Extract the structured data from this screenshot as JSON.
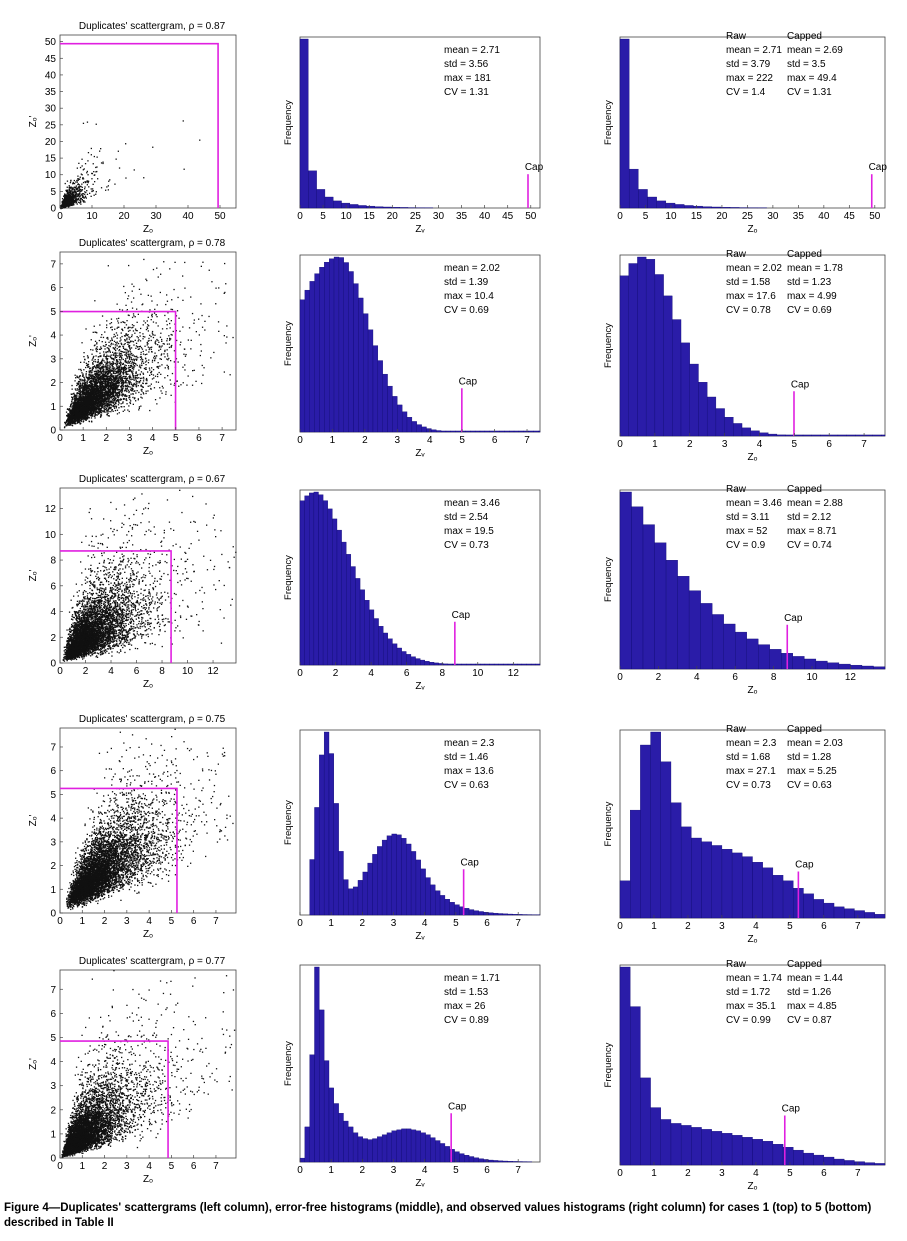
{
  "figure": {
    "caption": "Figure 4—Duplicates' scattergrams (left column), error-free histograms (middle), and observed values histograms (right column) for cases 1 (top) to 5 (bottom) described in Table II"
  },
  "colors": {
    "bar": "#2a1ca8",
    "bar_edge": "#0c0870",
    "cap": "#e020e0",
    "point": "#111111"
  },
  "chart_data": [
    {
      "type": "scatter",
      "case": 1,
      "title": "Duplicates' scattergram, ρ = 0.87",
      "xlabel": "Zₒ",
      "ylabel": "Zₒ'",
      "xlim": [
        0,
        55
      ],
      "ylim": [
        0,
        52
      ],
      "xticks": [
        "0",
        "10",
        "20",
        "30",
        "40",
        "50"
      ],
      "yticks": [
        "0",
        "5",
        "10",
        "15",
        "20",
        "25",
        "30",
        "35",
        "40",
        "45",
        "50"
      ],
      "cap": 49.4,
      "n_points": 1400,
      "rho": 0.87,
      "mean": 2.69,
      "cv": 1.31,
      "density": "dense cloud near origin, sparse scatter out to ~40"
    },
    {
      "type": "bar",
      "case": 1,
      "variable": "error-free",
      "xlabel": "Zᵥ",
      "ylabel": "Frequency",
      "xlim": [
        0,
        52
      ],
      "bin_width": 1.8,
      "xticks": [
        "0",
        "5",
        "10",
        "15",
        "20",
        "25",
        "30",
        "35",
        "40",
        "45",
        "50"
      ],
      "values": [
        100,
        22,
        11,
        6.5,
        4.2,
        2.9,
        2.1,
        1.5,
        1.1,
        0.8,
        0.6,
        0.45,
        0.35,
        0.25,
        0.2,
        0.15
      ],
      "cap": 49.4,
      "cap_label": "Cap",
      "stats": [
        "mean = 2.71",
        "std = 3.56",
        "max = 181",
        "CV = 1.31"
      ]
    },
    {
      "type": "bar",
      "case": 1,
      "variable": "observed",
      "xlabel": "Zₒ",
      "ylabel": "Frequency",
      "xlim": [
        0,
        52
      ],
      "bin_width": 1.8,
      "xticks": [
        "0",
        "5",
        "10",
        "15",
        "20",
        "25",
        "30",
        "35",
        "40",
        "45",
        "50"
      ],
      "values": [
        100,
        23,
        11,
        6.5,
        4.2,
        2.9,
        2.1,
        1.5,
        1.1,
        0.8,
        0.6,
        0.45,
        0.35,
        0.25,
        0.2,
        0.15
      ],
      "cap": 49.4,
      "cap_label": "Cap",
      "stats_headers": [
        "Raw",
        "Capped"
      ],
      "stats_raw": [
        "mean = 2.71",
        "std = 3.79",
        "max = 222",
        "CV = 1.4"
      ],
      "stats_capped": [
        "mean = 2.69",
        "std = 3.5",
        "max = 49.4",
        "CV = 1.31"
      ]
    },
    {
      "type": "scatter",
      "case": 2,
      "title": "Duplicates' scattergram, ρ = 0.78",
      "xlabel": "Zₒ",
      "ylabel": "Zₒ'",
      "xlim": [
        0,
        7.6
      ],
      "ylim": [
        0,
        7.5
      ],
      "xticks": [
        "0",
        "1",
        "2",
        "3",
        "4",
        "5",
        "6",
        "7"
      ],
      "yticks": [
        "0",
        "1",
        "2",
        "3",
        "4",
        "5",
        "6",
        "7"
      ],
      "cap": 4.99,
      "n_points": 5200,
      "rho": 0.78,
      "mean": 1.78,
      "cv": 0.69,
      "density": "wide wedge-shaped cloud"
    },
    {
      "type": "bar",
      "case": 2,
      "variable": "error-free",
      "xlabel": "Zᵥ",
      "ylabel": "Frequency",
      "xlim": [
        0,
        7.4
      ],
      "bin_width": 0.15,
      "xticks": [
        "0",
        "1",
        "2",
        "3",
        "4",
        "5",
        "6",
        "7"
      ],
      "profile": {
        "kind": "gamma",
        "peak": 1.2,
        "sigma_left": 1.5,
        "tail_scale": 1.35,
        "tail_power": 1.9,
        "floor": 0.6
      },
      "cap": 4.99,
      "cap_label": "Cap",
      "stats": [
        "mean = 2.02",
        "std = 1.39",
        "max = 10.4",
        "CV = 0.69"
      ]
    },
    {
      "type": "bar",
      "case": 2,
      "variable": "observed",
      "xlabel": "Zₒ",
      "ylabel": "Frequency",
      "xlim": [
        0,
        7.6
      ],
      "bin_width": 0.25,
      "xticks": [
        "0",
        "1",
        "2",
        "3",
        "4",
        "5",
        "6",
        "7"
      ],
      "profile": {
        "kind": "gamma",
        "peak": 0.75,
        "sigma_left": 1.3,
        "tail_scale": 1.45,
        "tail_power": 1.65,
        "floor": 0.6
      },
      "cap": 4.99,
      "cap_label": "Cap",
      "stats_headers": [
        "Raw",
        "Capped"
      ],
      "stats_raw": [
        "mean = 2.02",
        "std = 1.58",
        "max = 17.6",
        "CV = 0.78"
      ],
      "stats_capped": [
        "mean = 1.78",
        "std = 1.23",
        "max = 4.99",
        "CV = 0.69"
      ]
    },
    {
      "type": "scatter",
      "case": 3,
      "title": "Duplicates' scattergram, ρ = 0.67",
      "xlabel": "Zₒ",
      "ylabel": "Zₒ'",
      "xlim": [
        0,
        13.8
      ],
      "ylim": [
        0,
        13.6
      ],
      "xticks": [
        "0",
        "2",
        "4",
        "6",
        "8",
        "10",
        "12"
      ],
      "yticks": [
        "0",
        "2",
        "4",
        "6",
        "8",
        "10",
        "12"
      ],
      "cap": 8.71,
      "n_points": 5600,
      "rho": 0.67,
      "mean": 2.88,
      "cv": 0.74,
      "density": "wide cloud filling most of the panel"
    },
    {
      "type": "bar",
      "case": 3,
      "variable": "error-free",
      "xlabel": "Zᵥ",
      "ylabel": "Frequency",
      "xlim": [
        0,
        13.5
      ],
      "bin_width": 0.26,
      "xticks": [
        "0",
        "2",
        "4",
        "6",
        "8",
        "10",
        "12"
      ],
      "profile": {
        "kind": "gamma",
        "peak": 0.9,
        "sigma_left": 2.4,
        "tail_scale": 2.9,
        "tail_power": 1.75,
        "floor": 0.6
      },
      "cap": 8.71,
      "cap_label": "Cap",
      "stats": [
        "mean = 3.46",
        "std = 2.54",
        "max = 19.5",
        "CV = 0.73"
      ]
    },
    {
      "type": "bar",
      "case": 3,
      "variable": "observed",
      "xlabel": "Zₒ",
      "ylabel": "Frequency",
      "xlim": [
        0,
        13.8
      ],
      "bin_width": 0.6,
      "xticks": [
        "0",
        "2",
        "4",
        "6",
        "8",
        "10",
        "12"
      ],
      "profile": {
        "kind": "gamma",
        "peak": 0.2,
        "sigma_left": 1.0,
        "tail_scale": 4.3,
        "tail_power": 1.3,
        "floor": 1
      },
      "cap": 8.71,
      "cap_label": "Cap",
      "stats_headers": [
        "Raw",
        "Capped"
      ],
      "stats_raw": [
        "mean = 3.46",
        "std = 3.11",
        "max = 52",
        "CV = 0.9"
      ],
      "stats_capped": [
        "mean = 2.88",
        "std = 2.12",
        "max = 8.71",
        "CV = 0.74"
      ]
    },
    {
      "type": "scatter",
      "case": 4,
      "title": "Duplicates' scattergram, ρ = 0.75",
      "xlabel": "Zₒ",
      "ylabel": "Zₒ'",
      "xlim": [
        0,
        7.9
      ],
      "ylim": [
        0,
        7.8
      ],
      "xticks": [
        "0",
        "1",
        "2",
        "3",
        "4",
        "5",
        "6",
        "7"
      ],
      "yticks": [
        "0",
        "1",
        "2",
        "3",
        "4",
        "5",
        "6",
        "7"
      ],
      "cap": 5.25,
      "n_points": 6400,
      "rho": 0.75,
      "mean": 2.03,
      "cv": 0.63,
      "density": "very dense cloud"
    },
    {
      "type": "bar",
      "case": 4,
      "variable": "error-free",
      "xlabel": "Zᵥ",
      "ylabel": "Frequency",
      "xlim": [
        0,
        7.7
      ],
      "bin_width": 0.155,
      "xticks": [
        "0",
        "1",
        "2",
        "3",
        "4",
        "5",
        "6",
        "7"
      ],
      "profile": {
        "kind": "bimodal",
        "components": [
          {
            "mu": 0.85,
            "sigma": 0.3,
            "amp": 100
          },
          {
            "mu": 3.05,
            "sigma": 0.85,
            "amp": 45
          }
        ],
        "tail_from": 4.1,
        "tail_decay": 0.72,
        "min_x": 0.35
      },
      "cap": 5.25,
      "cap_label": "Cap",
      "stats": [
        "mean = 2.3",
        "std = 1.46",
        "max = 13.6",
        "CV = 0.63"
      ]
    },
    {
      "type": "bar",
      "case": 4,
      "variable": "observed",
      "xlabel": "Zₒ",
      "ylabel": "Frequency",
      "xlim": [
        0,
        7.8
      ],
      "bin_width": 0.3,
      "xticks": [
        "0",
        "1",
        "2",
        "3",
        "4",
        "5",
        "6",
        "7"
      ],
      "values": [
        20,
        58,
        93,
        100,
        84,
        62,
        49,
        43,
        41,
        39,
        37,
        35,
        33,
        30,
        27,
        23,
        20,
        16,
        13,
        10,
        8,
        6,
        5,
        4,
        3,
        2
      ],
      "cap": 5.25,
      "cap_label": "Cap",
      "stats_headers": [
        "Raw",
        "Capped"
      ],
      "stats_raw": [
        "mean = 2.3",
        "std = 1.68",
        "max = 27.1",
        "CV = 0.73"
      ],
      "stats_capped": [
        "mean = 2.03",
        "std = 1.28",
        "max = 5.25",
        "CV = 0.63"
      ]
    },
    {
      "type": "scatter",
      "case": 5,
      "title": "Duplicates' scattergram, ρ = 0.77",
      "xlabel": "Zₒ",
      "ylabel": "Zₒ'",
      "xlim": [
        0,
        7.9
      ],
      "ylim": [
        0,
        7.8
      ],
      "xticks": [
        "0",
        "1",
        "2",
        "3",
        "4",
        "5",
        "6",
        "7"
      ],
      "yticks": [
        "0",
        "1",
        "2",
        "3",
        "4",
        "5",
        "6",
        "7"
      ],
      "cap": 4.85,
      "n_points": 6000,
      "rho": 0.77,
      "mean": 1.44,
      "cv": 0.87,
      "density": "dense cloud near origin"
    },
    {
      "type": "bar",
      "case": 5,
      "variable": "error-free",
      "xlabel": "Zᵥ",
      "ylabel": "Frequency",
      "xlim": [
        0,
        7.7
      ],
      "bin_width": 0.155,
      "values": [
        2,
        18,
        55,
        100,
        78,
        52,
        38,
        30,
        25,
        21,
        18,
        15,
        13,
        12,
        11.5,
        12,
        13,
        14,
        15,
        16,
        16.5,
        17,
        17,
        16.5,
        16,
        15,
        14,
        12.5,
        11,
        9.5,
        8,
        6.5,
        5.3,
        4.3,
        3.5,
        2.8,
        2.2,
        1.7,
        1.3,
        1,
        0.8,
        0.6,
        0.5,
        0.4,
        0.3,
        0.25,
        0.2,
        0.15
      ],
      "xticks": [
        "0",
        "1",
        "2",
        "3",
        "4",
        "5",
        "6",
        "7"
      ],
      "cap": 4.85,
      "cap_label": "Cap",
      "stats": [
        "mean = 1.71",
        "std = 1.53",
        "max = 26",
        "CV = 0.89"
      ]
    },
    {
      "type": "bar",
      "case": 5,
      "variable": "observed",
      "xlabel": "Zₒ",
      "ylabel": "Frequency",
      "xlim": [
        0,
        7.8
      ],
      "bin_width": 0.3,
      "xticks": [
        "0",
        "1",
        "2",
        "3",
        "4",
        "5",
        "6",
        "7"
      ],
      "values": [
        100,
        80,
        44,
        29,
        23,
        21,
        20,
        19,
        18,
        17,
        16,
        15,
        14,
        13,
        12,
        10.5,
        9,
        7.5,
        6,
        5,
        4,
        3,
        2.3,
        1.7,
        1.2,
        0.8
      ],
      "cap": 4.85,
      "cap_label": "Cap",
      "stats_headers": [
        "Raw",
        "Capped"
      ],
      "stats_raw": [
        "mean = 1.74",
        "std = 1.72",
        "max = 35.1",
        "CV = 0.99"
      ],
      "stats_capped": [
        "mean = 1.44",
        "std = 1.26",
        "max = 4.85",
        "CV = 0.87"
      ]
    }
  ]
}
